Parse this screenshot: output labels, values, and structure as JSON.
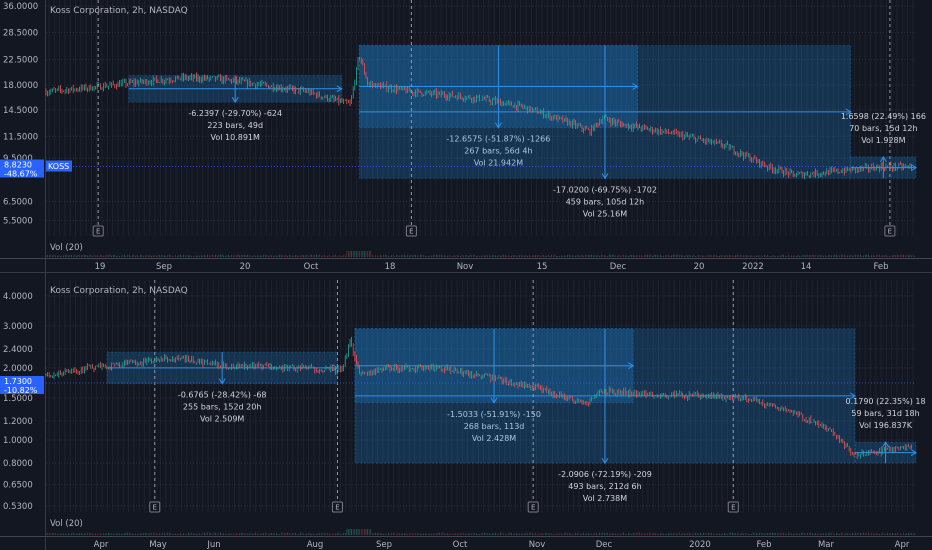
{
  "chart_data": [
    {
      "type": "candlestick",
      "title": "Koss Corporation, 2h, NASDAQ",
      "y_scale": "log",
      "ylim": [
        4.8,
        36
      ],
      "yticks": [
        "36.0000",
        "28.5000",
        "22.5000",
        "18.0000",
        "14.5000",
        "11.5000",
        "9.5000",
        "6.5000",
        "5.5000"
      ],
      "yvalues": [
        36,
        28.5,
        22.5,
        18,
        14.5,
        11.5,
        9.5,
        6.5,
        5.5
      ],
      "xticks": [
        "19",
        "Sep",
        "20",
        "Oct",
        "18",
        "Nov",
        "15",
        "Dec",
        "20",
        "2022",
        "14",
        "Feb"
      ],
      "price_tag": {
        "symbol": "KOSS",
        "price": "8.8230",
        "change": "-48.67%",
        "value": 8.823
      },
      "path": [
        [
          0,
          17
        ],
        [
          0.05,
          17.6
        ],
        [
          0.1,
          18.4
        ],
        [
          0.16,
          19.2
        ],
        [
          0.2,
          19
        ],
        [
          0.25,
          18
        ],
        [
          0.3,
          17
        ],
        [
          0.34,
          15.5
        ],
        [
          0.35,
          15.2
        ],
        [
          0.36,
          23.5
        ],
        [
          0.37,
          18.2
        ],
        [
          0.42,
          17
        ],
        [
          0.5,
          16
        ],
        [
          0.55,
          14.8
        ],
        [
          0.6,
          13
        ],
        [
          0.625,
          12
        ],
        [
          0.64,
          13.5
        ],
        [
          0.66,
          12.8
        ],
        [
          0.72,
          11.8
        ],
        [
          0.78,
          10.6
        ],
        [
          0.83,
          8.8
        ],
        [
          0.86,
          8.2
        ],
        [
          0.9,
          8.4
        ],
        [
          0.93,
          8.6
        ],
        [
          0.96,
          8.8
        ],
        [
          1,
          8.8
        ]
      ],
      "measurements": [
        {
          "x0": 0.095,
          "x1": 0.34,
          "p0": 19.6,
          "p1": 15.5,
          "text": [
            "-6.2397 (-29.70%) -624",
            "223 bars, 49d",
            "Vol 10.891M"
          ]
        },
        {
          "x0": 0.36,
          "x1": 0.68,
          "p0": 25.5,
          "p1": 12.4,
          "text": [
            "-12.6575 (-51.87%) -1266",
            "267 bars, 56d 4h",
            "Vol 21.942M"
          ]
        },
        {
          "x0": 0.36,
          "x1": 0.925,
          "p0": 25.5,
          "p1": 7.95,
          "text": [
            "-17.0200 (-69.75%) -1702",
            "459 bars, 105d 12h",
            "Vol 25.16M"
          ]
        },
        {
          "x0": 0.925,
          "x1": 1.0,
          "p0": 7.95,
          "p1": 9.6,
          "text": [
            "1.6598 (22.49%) 166",
            "70 bars, 15d 12h",
            "Vol 1.928M"
          ]
        }
      ],
      "events": [
        0.06,
        0.42,
        0.97
      ],
      "volume_label": "Vol (20)"
    },
    {
      "type": "candlestick",
      "title": "Koss Corporation, 2h, NASDAQ",
      "y_scale": "log",
      "ylim": [
        0.5,
        4.4
      ],
      "yticks": [
        "4.0000",
        "3.0000",
        "2.4000",
        "2.0000",
        "1.5000",
        "1.2000",
        "1.0000",
        "0.8000",
        "0.6500",
        "0.5300"
      ],
      "yvalues": [
        4,
        3,
        2.4,
        2,
        1.5,
        1.2,
        1,
        0.8,
        0.65,
        0.53
      ],
      "xticks": [
        "Apr",
        "May",
        "Jun",
        "Aug",
        "Sep",
        "Oct",
        "Nov",
        "Dec",
        "2020",
        "Feb",
        "Mar",
        "Apr"
      ],
      "price_tag": {
        "symbol": "",
        "price": "1.7300",
        "change": "-10.82%",
        "value": 1.73
      },
      "path": [
        [
          0,
          1.85
        ],
        [
          0.05,
          2.0
        ],
        [
          0.1,
          2.1
        ],
        [
          0.15,
          2.2
        ],
        [
          0.2,
          2.05
        ],
        [
          0.3,
          2.0
        ],
        [
          0.34,
          1.95
        ],
        [
          0.35,
          2.6
        ],
        [
          0.36,
          1.9
        ],
        [
          0.4,
          2.0
        ],
        [
          0.45,
          2.0
        ],
        [
          0.5,
          1.85
        ],
        [
          0.55,
          1.7
        ],
        [
          0.6,
          1.5
        ],
        [
          0.62,
          1.42
        ],
        [
          0.64,
          1.6
        ],
        [
          0.7,
          1.55
        ],
        [
          0.8,
          1.5
        ],
        [
          0.85,
          1.35
        ],
        [
          0.9,
          1.1
        ],
        [
          0.93,
          0.86
        ],
        [
          0.96,
          0.9
        ],
        [
          1,
          0.95
        ]
      ],
      "measurements": [
        {
          "x0": 0.07,
          "x1": 0.335,
          "p0": 2.33,
          "p1": 1.72,
          "text": [
            "-0.6765 (-28.42%) -68",
            "255 bars, 152d 20h",
            "Vol 2.509M"
          ]
        },
        {
          "x0": 0.355,
          "x1": 0.675,
          "p0": 2.92,
          "p1": 1.43,
          "text": [
            "-1.5033 (-51.91%) -150",
            "268 bars, 113d",
            "Vol 2.428M"
          ]
        },
        {
          "x0": 0.355,
          "x1": 0.93,
          "p0": 2.92,
          "p1": 0.8,
          "text": [
            "-2.0906 (-72.19%) -209",
            "493 bars, 212d 6h",
            "Vol 2.738M"
          ]
        },
        {
          "x0": 0.93,
          "x1": 1.0,
          "p0": 0.8,
          "p1": 0.98,
          "text": [
            "0.1790 (22.35%) 18",
            "59 bars, 31d 18h",
            "Vol 196.837K"
          ]
        }
      ],
      "events": [
        0.125,
        0.335,
        0.56,
        0.79
      ],
      "volume_label": "Vol (20)"
    }
  ]
}
